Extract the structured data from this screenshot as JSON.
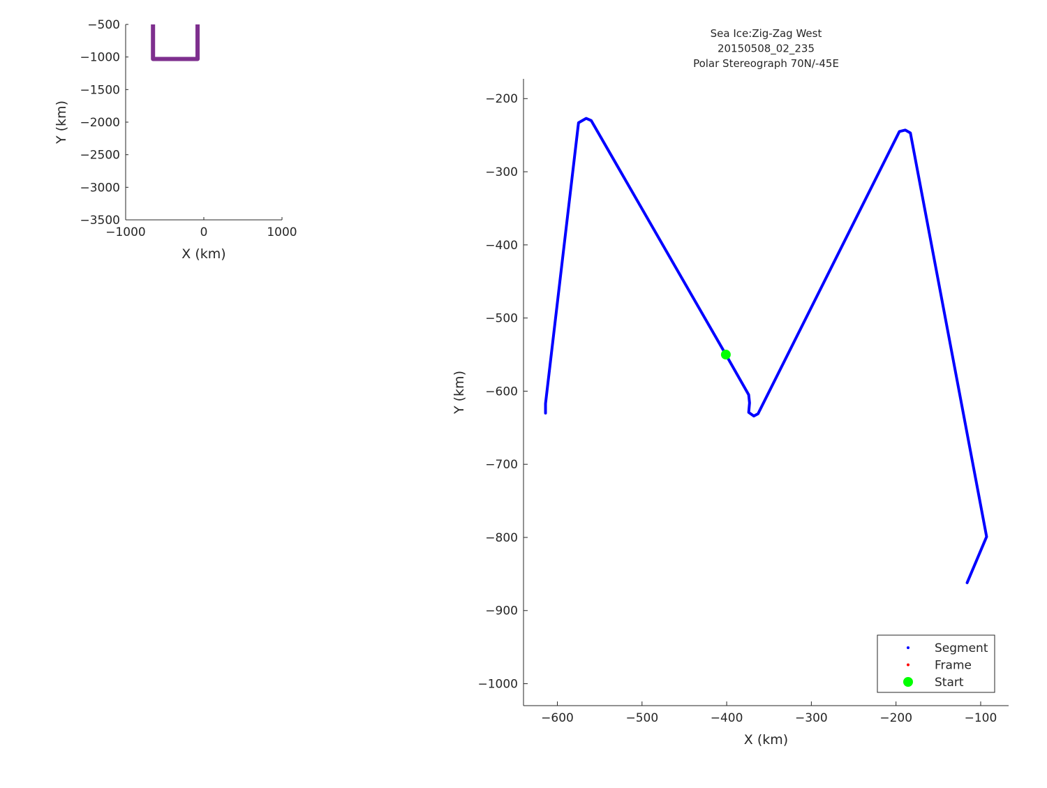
{
  "chart_data": [
    {
      "type": "line",
      "title": "",
      "xlabel": "X (km)",
      "ylabel": "Y (km)",
      "xlim": [
        -1000,
        1000
      ],
      "ylim": [
        -3500,
        -500
      ],
      "xticks": [
        -1000,
        0,
        1000
      ],
      "xtick_labels": [
        "−1000",
        "0",
        "1000"
      ],
      "yticks": [
        -500,
        -1000,
        -1500,
        -2000,
        -2500,
        -3000,
        -3500
      ],
      "ytick_labels": [
        "−500",
        "−1000",
        "−1500",
        "−2000",
        "−2500",
        "−3000",
        "−3500"
      ],
      "grid": false,
      "series": [
        {
          "color": "#7e2f8e",
          "x": [
            -650,
            -650,
            -80,
            -80
          ],
          "y": [
            -400,
            -1030,
            -1030,
            -400
          ]
        }
      ]
    },
    {
      "type": "line",
      "title": [
        "Sea Ice:Zig-Zag West",
        "20150508_02_235",
        "Polar Stereograph 70N/-45E"
      ],
      "xlabel": "X (km)",
      "ylabel": "Y (km)",
      "xlim": [
        -640,
        -67
      ],
      "ylim": [
        -1030,
        -173
      ],
      "xticks": [
        -600,
        -500,
        -400,
        -300,
        -200,
        -100
      ],
      "xtick_labels": [
        "−600",
        "−500",
        "−400",
        "−300",
        "−200",
        "−100"
      ],
      "yticks": [
        -200,
        -300,
        -400,
        -500,
        -600,
        -700,
        -800,
        -900,
        -1000
      ],
      "ytick_labels": [
        "−200",
        "−300",
        "−400",
        "−500",
        "−600",
        "−700",
        "−800",
        "−900",
        "−1000"
      ],
      "grid": false,
      "legend_placement": "bottom-right",
      "series": [
        {
          "name": "Segment",
          "color": "#0000ff",
          "x": [
            -614,
            -614,
            -575,
            -566,
            -560,
            -401,
            -374,
            -373,
            -374,
            -368,
            -363,
            -196,
            -189,
            -183,
            -93,
            -116
          ],
          "y": [
            -630,
            -617,
            -233,
            -227,
            -230,
            -550,
            -605,
            -616,
            -629,
            -634,
            -631,
            -245,
            -243,
            -247,
            -799,
            -862
          ]
        },
        {
          "name": "Frame",
          "color": "#ff0000",
          "x": [],
          "y": []
        },
        {
          "name": "Start",
          "color": "#00ff00",
          "x": [
            -401
          ],
          "y": [
            -550
          ]
        }
      ]
    }
  ]
}
